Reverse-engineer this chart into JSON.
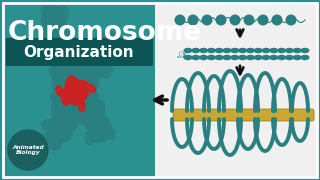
{
  "bg_color": "#1a7a7a",
  "bg_color_light": "#2a9090",
  "title_text": "Chromosome",
  "subtitle_text": "Organization",
  "subtitle_bg": "#0d5555",
  "text_color": "white",
  "teal_dark": "#1a6060",
  "teal_chr": "#2a8080",
  "red_color": "#cc2222",
  "gold_color": "#c8a830",
  "arrow_color": "#111111",
  "logo_text": "Animated\nBiology"
}
